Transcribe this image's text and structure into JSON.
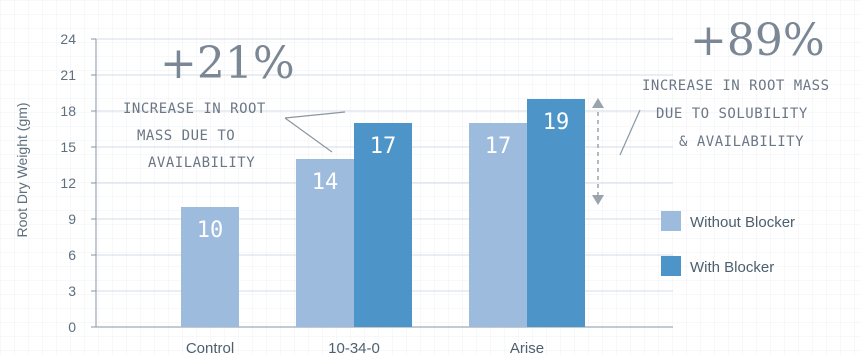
{
  "chart_data": {
    "type": "bar",
    "ylabel": "Root Dry Weight (gm)",
    "ylim": [
      0,
      24
    ],
    "yticks": [
      0,
      3,
      6,
      9,
      12,
      15,
      18,
      21,
      24
    ],
    "grid": true,
    "legend_position": "right",
    "categories": [
      "Control",
      "10-34-0",
      "Arise"
    ],
    "series": [
      {
        "name": "Without Blocker",
        "color": "#9dbbdd",
        "values": [
          10,
          14,
          17
        ]
      },
      {
        "name": "With Blocker",
        "color": "#4d95c8",
        "values": [
          null,
          17,
          19
        ]
      }
    ],
    "data_labels": [
      {
        "category": "Control",
        "series": "Without Blocker",
        "text": "10"
      },
      {
        "category": "10-34-0",
        "series": "Without Blocker",
        "text": "14"
      },
      {
        "category": "10-34-0",
        "series": "With Blocker",
        "text": "17"
      },
      {
        "category": "Arise",
        "series": "Without Blocker",
        "text": "17"
      },
      {
        "category": "Arise",
        "series": "With Blocker",
        "text": "19"
      }
    ],
    "annotations": [
      {
        "percent": "+21%",
        "lines": [
          "INCREASE IN ROOT",
          "MASS DUE TO",
          "AVAILABILITY"
        ]
      },
      {
        "percent": "+89%",
        "lines": [
          "INCREASE IN ROOT MASS",
          "DUE TO SOLUBILITY",
          "& AVAILABILITY"
        ]
      }
    ]
  }
}
